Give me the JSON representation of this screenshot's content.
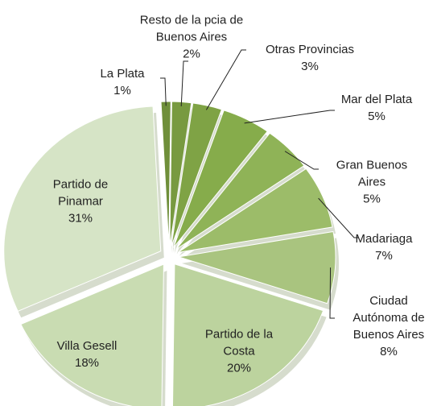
{
  "chart_data": {
    "type": "pie",
    "categories": [
      "La Plata",
      "Resto de la pcia de Buenos Aires",
      "Otras Provincias",
      "Mar del Plata",
      "Gran Buenos Aires",
      "Madariaga",
      "Ciudad Autónoma de Buenos Aires",
      "Partido de la Costa",
      "Villa Gesell",
      "Partido de Pinamar"
    ],
    "values": [
      1,
      2,
      3,
      5,
      5,
      7,
      8,
      20,
      18,
      31
    ],
    "value_labels": [
      "1%",
      "2%",
      "3%",
      "5%",
      "5%",
      "7%",
      "8%",
      "20%",
      "18%",
      "31%"
    ],
    "colors": [
      "#6f8f3a",
      "#789a40",
      "#7fa345",
      "#86ac4b",
      "#8fb357",
      "#9cbc69",
      "#a9c47f",
      "#bcd39e",
      "#c9dcb2",
      "#d6e4c6"
    ]
  }
}
